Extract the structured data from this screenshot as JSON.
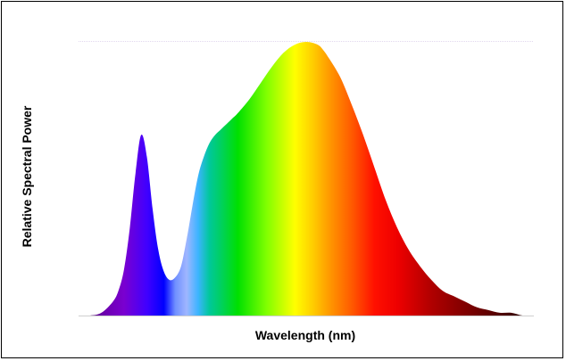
{
  "chart_data": {
    "type": "area",
    "title": "",
    "xlabel": "Wavelength (nm)",
    "ylabel": "Relative Spectral Power",
    "xlim": [
      380,
      780
    ],
    "ylim": [
      0,
      1
    ],
    "grid": false,
    "legend": "none",
    "fill": "visible-spectrum gradient",
    "x": [
      380,
      390,
      400,
      410,
      415,
      420,
      425,
      430,
      435,
      440,
      445,
      450,
      455,
      460,
      465,
      470,
      475,
      480,
      485,
      490,
      495,
      500,
      505,
      510,
      515,
      520,
      530,
      540,
      550,
      560,
      570,
      580,
      590,
      595,
      600,
      610,
      620,
      630,
      640,
      650,
      660,
      670,
      680,
      690,
      700,
      710,
      720,
      730,
      740,
      750,
      760,
      770,
      780
    ],
    "values": [
      0.0,
      0.0,
      0.01,
      0.05,
      0.09,
      0.17,
      0.32,
      0.52,
      0.66,
      0.58,
      0.39,
      0.24,
      0.16,
      0.13,
      0.14,
      0.18,
      0.28,
      0.4,
      0.51,
      0.58,
      0.63,
      0.66,
      0.68,
      0.7,
      0.72,
      0.74,
      0.79,
      0.85,
      0.91,
      0.96,
      0.99,
      1.0,
      0.99,
      0.97,
      0.94,
      0.87,
      0.77,
      0.66,
      0.54,
      0.42,
      0.32,
      0.24,
      0.18,
      0.13,
      0.09,
      0.07,
      0.05,
      0.03,
      0.02,
      0.01,
      0.01,
      0.0,
      0.0
    ]
  }
}
